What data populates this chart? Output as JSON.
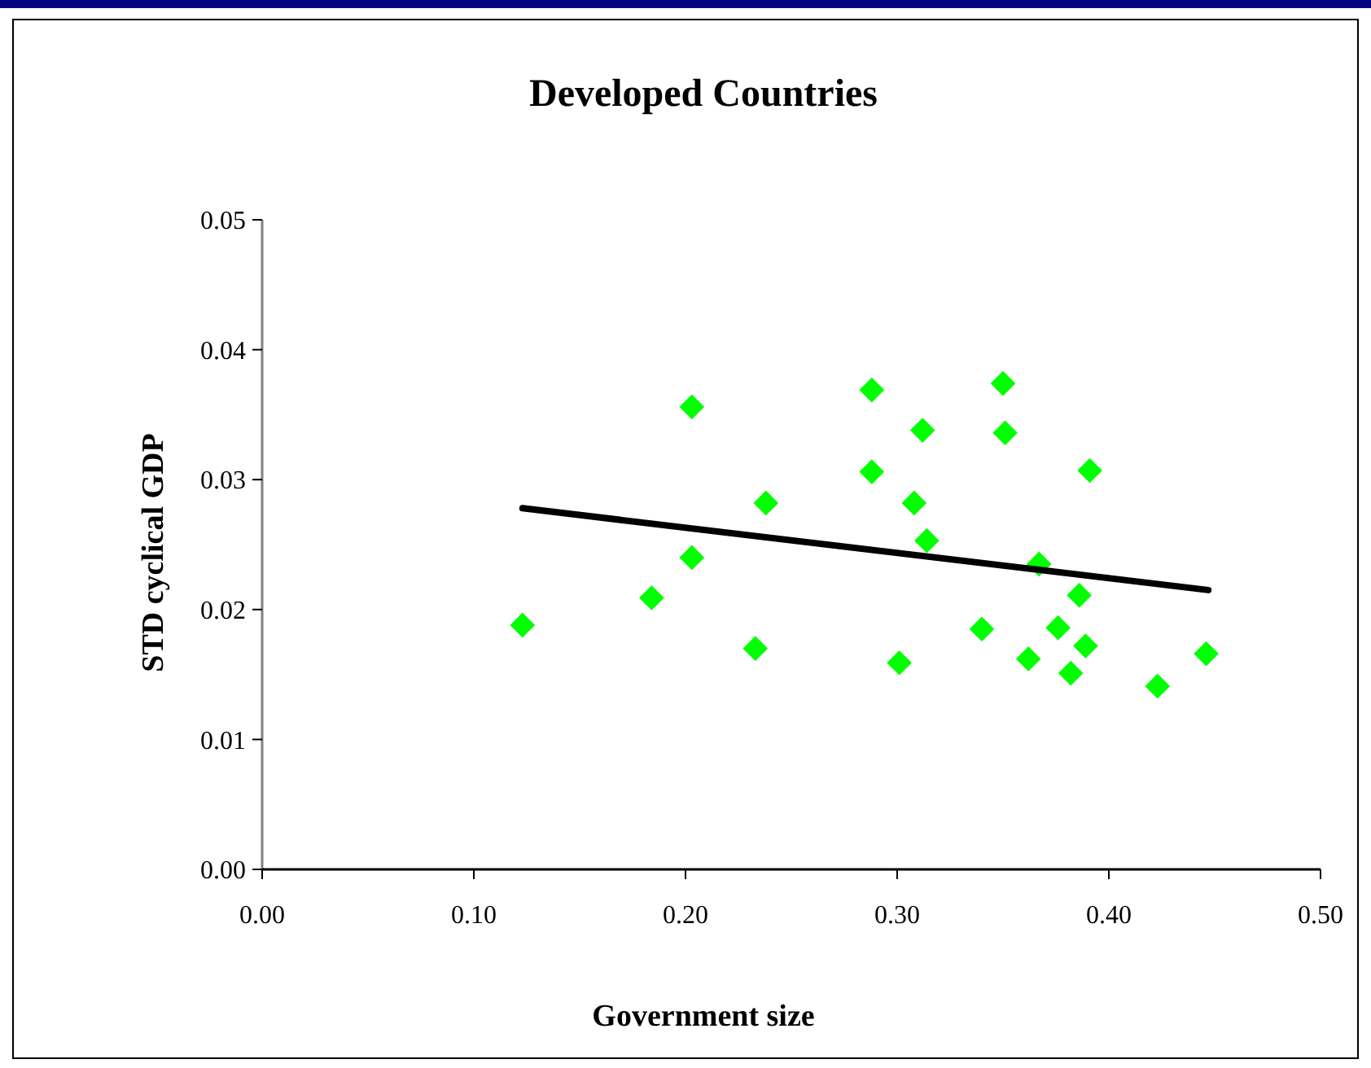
{
  "chart_data": {
    "type": "scatter",
    "title": "Developed Countries",
    "xlabel": "Government size",
    "ylabel": "STD cyclical GDP",
    "xlim": [
      0,
      0.5
    ],
    "ylim": [
      0,
      0.05
    ],
    "xticks": [
      {
        "value": 0,
        "label": "0.00"
      },
      {
        "value": 0.1,
        "label": "0.10"
      },
      {
        "value": 0.2,
        "label": "0.20"
      },
      {
        "value": 0.3,
        "label": "0.30"
      },
      {
        "value": 0.4,
        "label": "0.40"
      },
      {
        "value": 0.5,
        "label": "0.50"
      }
    ],
    "yticks": [
      {
        "value": 0,
        "label": "0.00"
      },
      {
        "value": 0.01,
        "label": "0.01"
      },
      {
        "value": 0.02,
        "label": "0.02"
      },
      {
        "value": 0.03,
        "label": "0.03"
      },
      {
        "value": 0.04,
        "label": "0.04"
      },
      {
        "value": 0.05,
        "label": "0.05"
      }
    ],
    "grid": false,
    "series": [
      {
        "color": "#00ff00",
        "marker": "diamond",
        "x": [
          0.123,
          0.184,
          0.203,
          0.203,
          0.233,
          0.238,
          0.288,
          0.35,
          0.312,
          0.351,
          0.288,
          0.391,
          0.308,
          0.314,
          0.367,
          0.386,
          0.34,
          0.376,
          0.389,
          0.301,
          0.362,
          0.382,
          0.423,
          0.446
        ],
        "values": [
          0.0188,
          0.0209,
          0.0356,
          0.024,
          0.017,
          0.0282,
          0.0369,
          0.0374,
          0.0338,
          0.0336,
          0.0306,
          0.0307,
          0.0282,
          0.0253,
          0.0235,
          0.0211,
          0.0185,
          0.0186,
          0.0172,
          0.0159,
          0.0162,
          0.0151,
          0.0141,
          0.0166
        ]
      },
      {
        "type": "line",
        "color": "#000000",
        "marker": "none",
        "line_style": "solid",
        "x": [
          0.123,
          0.447
        ],
        "values": [
          0.0278,
          0.0215
        ]
      }
    ]
  }
}
